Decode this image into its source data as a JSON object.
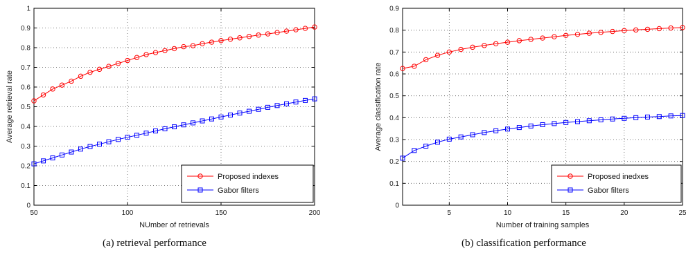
{
  "chart_data": [
    {
      "type": "line",
      "xlabel": "NUmber of retrievals",
      "ylabel": "Average retrieval rate",
      "xlim": [
        50,
        200
      ],
      "ylim": [
        0,
        1
      ],
      "xticks": [
        50,
        100,
        150,
        200
      ],
      "yticks": [
        0,
        0.1,
        0.2,
        0.3,
        0.4,
        0.5,
        0.6,
        0.7,
        0.8,
        0.9,
        1
      ],
      "grid": true,
      "legend_position": "bottom-right",
      "caption": "(a)  retrieval performance",
      "x": [
        50,
        55,
        60,
        65,
        70,
        75,
        80,
        85,
        90,
        95,
        100,
        105,
        110,
        115,
        120,
        125,
        130,
        135,
        140,
        145,
        150,
        155,
        160,
        165,
        170,
        175,
        180,
        185,
        190,
        195,
        200
      ],
      "series": [
        {
          "name": "Proposed indexes",
          "color": "#ff0000",
          "marker": "circle",
          "values": [
            0.53,
            0.56,
            0.59,
            0.61,
            0.63,
            0.655,
            0.675,
            0.69,
            0.705,
            0.72,
            0.735,
            0.75,
            0.765,
            0.775,
            0.785,
            0.795,
            0.805,
            0.81,
            0.82,
            0.828,
            0.836,
            0.843,
            0.85,
            0.857,
            0.864,
            0.87,
            0.877,
            0.884,
            0.891,
            0.898,
            0.905
          ]
        },
        {
          "name": "Gabor filters",
          "color": "#0000ff",
          "marker": "square",
          "values": [
            0.21,
            0.225,
            0.24,
            0.255,
            0.27,
            0.285,
            0.298,
            0.31,
            0.322,
            0.334,
            0.345,
            0.355,
            0.366,
            0.377,
            0.388,
            0.398,
            0.408,
            0.418,
            0.428,
            0.438,
            0.448,
            0.458,
            0.468,
            0.477,
            0.487,
            0.497,
            0.506,
            0.515,
            0.524,
            0.532,
            0.54
          ]
        }
      ]
    },
    {
      "type": "line",
      "xlabel": "Number of training samples",
      "ylabel": "Average classification rate",
      "xlim": [
        1,
        25
      ],
      "ylim": [
        0,
        0.9
      ],
      "xticks": [
        5,
        10,
        15,
        20,
        25
      ],
      "yticks": [
        0,
        0.1,
        0.2,
        0.3,
        0.4,
        0.5,
        0.6,
        0.7,
        0.8,
        0.9
      ],
      "grid": true,
      "legend_position": "bottom-right",
      "caption": "(b)  classification performance",
      "x": [
        1,
        2,
        3,
        4,
        5,
        6,
        7,
        8,
        9,
        10,
        11,
        12,
        13,
        14,
        15,
        16,
        17,
        18,
        19,
        20,
        21,
        22,
        23,
        24,
        25
      ],
      "series": [
        {
          "name": "Proposed inedxes",
          "color": "#ff0000",
          "marker": "circle",
          "values": [
            0.625,
            0.635,
            0.665,
            0.685,
            0.7,
            0.712,
            0.722,
            0.73,
            0.738,
            0.745,
            0.752,
            0.758,
            0.764,
            0.77,
            0.776,
            0.781,
            0.786,
            0.79,
            0.794,
            0.798,
            0.801,
            0.804,
            0.807,
            0.81,
            0.812
          ]
        },
        {
          "name": "Gabor filters",
          "color": "#0000ff",
          "marker": "square",
          "values": [
            0.215,
            0.25,
            0.27,
            0.288,
            0.302,
            0.312,
            0.322,
            0.332,
            0.34,
            0.348,
            0.355,
            0.362,
            0.368,
            0.373,
            0.378,
            0.382,
            0.386,
            0.39,
            0.394,
            0.397,
            0.4,
            0.403,
            0.405,
            0.408,
            0.41
          ]
        }
      ]
    }
  ]
}
